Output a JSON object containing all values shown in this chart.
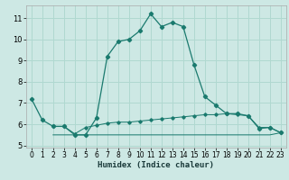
{
  "xlabel": "Humidex (Indice chaleur)",
  "background_color": "#cde8e4",
  "grid_color": "#b0d8d0",
  "line_color": "#1a7a6e",
  "xlim": [
    -0.5,
    23.5
  ],
  "ylim": [
    4.9,
    11.6
  ],
  "xticks": [
    0,
    1,
    2,
    3,
    4,
    5,
    6,
    7,
    8,
    9,
    10,
    11,
    12,
    13,
    14,
    15,
    16,
    17,
    18,
    19,
    20,
    21,
    22,
    23
  ],
  "yticks": [
    5,
    6,
    7,
    8,
    9,
    10,
    11
  ],
  "curve1_x": [
    0,
    1,
    2,
    3,
    4,
    5,
    6,
    7,
    8,
    9,
    10,
    11,
    12,
    13,
    14,
    15,
    16,
    17,
    18,
    19,
    20,
    21,
    22,
    23
  ],
  "curve1_y": [
    7.2,
    6.2,
    5.9,
    5.9,
    5.5,
    5.5,
    6.3,
    9.2,
    9.9,
    10.0,
    10.4,
    11.2,
    10.6,
    10.8,
    10.6,
    8.8,
    7.3,
    6.9,
    6.5,
    6.5,
    6.4,
    5.8,
    5.85,
    5.6
  ],
  "curve2_x": [
    2,
    3,
    4,
    5,
    6,
    7,
    8,
    9,
    10,
    11,
    12,
    13,
    14,
    15,
    16,
    17,
    18,
    19,
    20,
    21,
    22,
    23
  ],
  "curve2_y": [
    5.9,
    5.9,
    5.55,
    5.85,
    5.95,
    6.05,
    6.1,
    6.1,
    6.15,
    6.2,
    6.25,
    6.3,
    6.35,
    6.4,
    6.45,
    6.45,
    6.5,
    6.45,
    6.4,
    5.85,
    5.85,
    5.6
  ],
  "curve3_x": [
    2,
    3,
    4,
    5,
    6,
    7,
    8,
    9,
    10,
    11,
    12,
    13,
    14,
    15,
    16,
    17,
    18,
    19,
    20,
    21,
    22,
    23
  ],
  "curve3_y": [
    5.5,
    5.5,
    5.5,
    5.5,
    5.5,
    5.5,
    5.5,
    5.5,
    5.5,
    5.5,
    5.5,
    5.5,
    5.5,
    5.5,
    5.5,
    5.5,
    5.5,
    5.5,
    5.5,
    5.5,
    5.5,
    5.6
  ]
}
